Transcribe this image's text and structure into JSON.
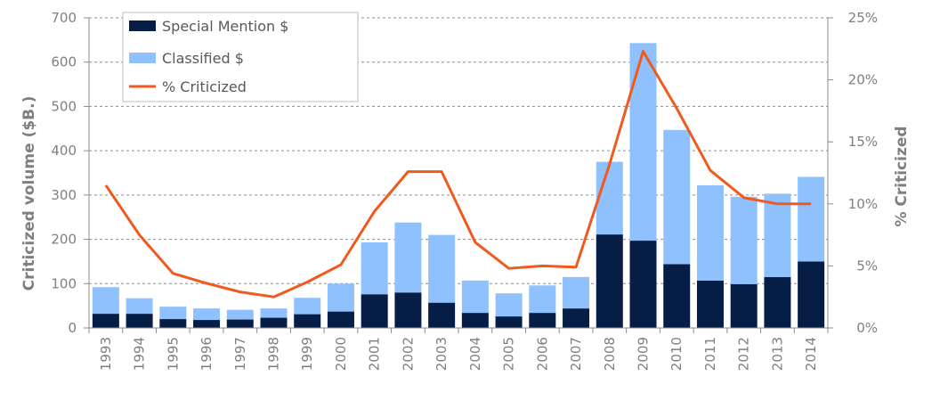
{
  "chart_data": {
    "type": "bar",
    "stacked": true,
    "categories": [
      "1993",
      "1994",
      "1995",
      "1996",
      "1997",
      "1998",
      "1999",
      "2000",
      "2001",
      "2002",
      "2003",
      "2004",
      "2005",
      "2006",
      "2007",
      "2008",
      "2009",
      "2010",
      "2011",
      "2012",
      "2013",
      "2014"
    ],
    "series": [
      {
        "name": "Special Mention $",
        "type": "bar",
        "axis": "left",
        "color": "#061e45",
        "values": [
          32,
          32,
          20,
          18,
          19,
          23,
          31,
          37,
          76,
          80,
          57,
          34,
          26,
          34,
          44,
          211,
          197,
          144,
          107,
          99,
          115,
          150
        ]
      },
      {
        "name": "Classified $",
        "type": "bar",
        "axis": "left",
        "color": "#8fc1ff",
        "values": [
          60,
          35,
          28,
          26,
          22,
          21,
          37,
          63,
          117,
          158,
          153,
          73,
          52,
          62,
          71,
          164,
          446,
          303,
          215,
          197,
          188,
          191
        ]
      },
      {
        "name": "% Criticized",
        "type": "line",
        "axis": "right",
        "color": "#f05a1e",
        "values": [
          11.5,
          7.5,
          4.4,
          3.6,
          2.9,
          2.5,
          3.7,
          5.1,
          9.4,
          12.6,
          12.6,
          6.9,
          4.8,
          5.0,
          4.9,
          13.2,
          22.3,
          17.7,
          12.7,
          10.5,
          10.0,
          10.0
        ]
      }
    ],
    "ylabel": "Criticized volume ($B.)",
    "y2label": "% Criticized",
    "ylim": [
      0,
      700
    ],
    "y2lim": [
      0,
      25
    ],
    "yticks": [
      "0",
      "100",
      "200",
      "300",
      "400",
      "500",
      "600",
      "700"
    ],
    "y2ticks": [
      "0%",
      "5%",
      "10%",
      "15%",
      "20%",
      "25%"
    ],
    "grid": true,
    "legend_position": "top-left"
  }
}
